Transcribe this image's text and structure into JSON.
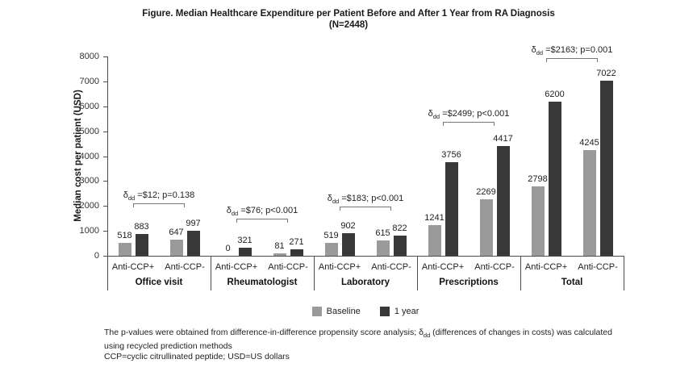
{
  "title": {
    "line1": "Figure. Median Healthcare Expenditure per Patient Before and After 1 Year from RA Diagnosis",
    "line2": "(N=2448)"
  },
  "footnote": {
    "line1_before": "The p-values were obtained from difference-in-difference propensity score analysis; δ",
    "line1_sub": "dd",
    "line1_after": " (differences of changes in costs) was calculated",
    "line2": "using recycled prediction methods",
    "line3": "CCP=cyclic citrullinated peptide; USD=US dollars"
  },
  "colors": {
    "baseline_bar": "#9a9a9a",
    "one_year_bar": "#383838",
    "axis_line": "#4d4d4d",
    "bracket_line": "#777777"
  },
  "chart_data": {
    "type": "bar",
    "title": "Figure. Median Healthcare Expenditure per Patient Before and After 1 Year from RA Diagnosis (N=2448)",
    "ylabel": "Median cost per patient (USD)",
    "xlabel": "",
    "ylim": [
      0,
      8000
    ],
    "yticks": [
      0,
      1000,
      2000,
      3000,
      4000,
      5000,
      6000,
      7000,
      8000
    ],
    "grid": false,
    "legend_position": "bottom",
    "series": [
      {
        "name": "Baseline",
        "color": "#9a9a9a"
      },
      {
        "name": "1 year",
        "color": "#383838"
      }
    ],
    "groups": [
      {
        "label": "Office visit",
        "subgroups": [
          {
            "label": "Anti-CCP+",
            "values": [
              518,
              883
            ]
          },
          {
            "label": "Anti-CCP-",
            "values": [
              647,
              997
            ]
          }
        ],
        "annotation": {
          "symbol": "δ",
          "sub": "dd",
          "text": "=$12; p=0.138",
          "bracket_y": 2100
        }
      },
      {
        "label": "Rheumatologist",
        "subgroups": [
          {
            "label": "Anti-CCP+",
            "values": [
              0,
              321
            ]
          },
          {
            "label": "Anti-CCP-",
            "values": [
              81,
              271
            ]
          }
        ],
        "annotation": {
          "symbol": "δ",
          "sub": "dd",
          "text": "=$76; p<0.001",
          "bracket_y": 1490
        }
      },
      {
        "label": "Laboratory",
        "subgroups": [
          {
            "label": "Anti-CCP+",
            "values": [
              519,
              902
            ]
          },
          {
            "label": "Anti-CCP-",
            "values": [
              615,
              822
            ]
          }
        ],
        "annotation": {
          "symbol": "δ",
          "sub": "dd",
          "text": "=$183; p<0.001",
          "bracket_y": 1975
        }
      },
      {
        "label": "Prescriptions",
        "subgroups": [
          {
            "label": "Anti-CCP+",
            "values": [
              1241,
              3756
            ]
          },
          {
            "label": "Anti-CCP-",
            "values": [
              2269,
              4417
            ]
          }
        ],
        "annotation": {
          "symbol": "δ",
          "sub": "dd",
          "text": "=$2499; p<0.001",
          "bracket_y": 5375
        }
      },
      {
        "label": "Total",
        "subgroups": [
          {
            "label": "Anti-CCP+",
            "values": [
              2798,
              6200
            ]
          },
          {
            "label": "Anti-CCP-",
            "values": [
              4245,
              7022
            ]
          }
        ],
        "annotation": {
          "symbol": "δ",
          "sub": "dd",
          "text": "=$2163; p=0.001",
          "bracket_y": 7920
        }
      }
    ]
  }
}
